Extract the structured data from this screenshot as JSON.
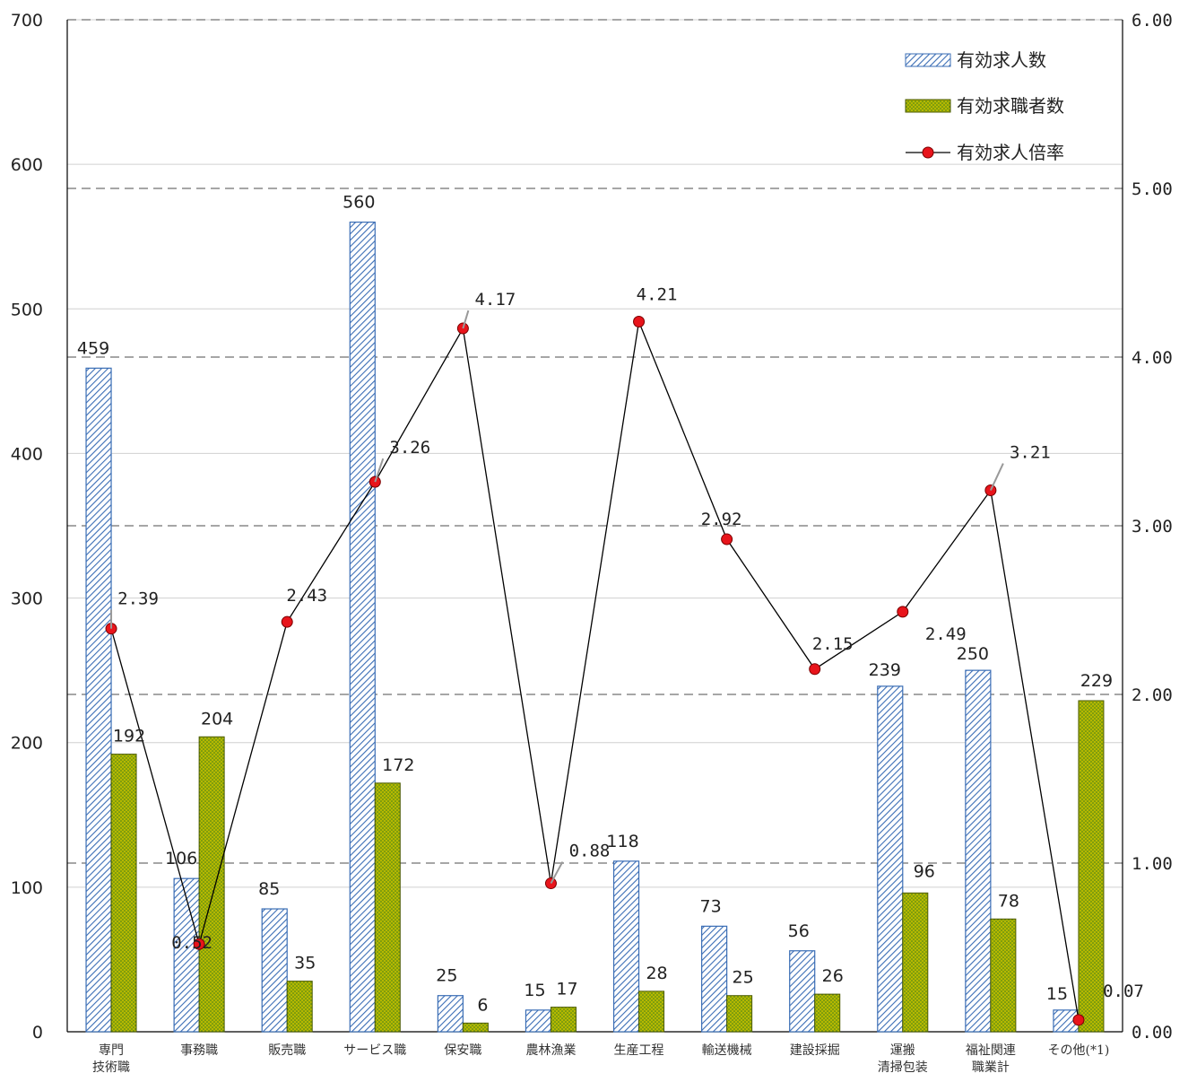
{
  "chart_data": {
    "type": "bar",
    "categories": [
      [
        "専門",
        "技術職"
      ],
      [
        "事務職"
      ],
      [
        "販売職"
      ],
      [
        "サービス職"
      ],
      [
        "保安職"
      ],
      [
        "農林漁業"
      ],
      [
        "生産工程"
      ],
      [
        "輸送機械"
      ],
      [
        "建設採掘"
      ],
      [
        "運搬",
        "清掃包装"
      ],
      [
        "福祉関連",
        "職業計"
      ],
      [
        "その他(*1)"
      ]
    ],
    "series": [
      {
        "name": "有効求人数",
        "axis": "left",
        "style": "hatched-blue",
        "values": [
          459,
          106,
          85,
          560,
          25,
          15,
          118,
          73,
          56,
          239,
          250,
          15
        ]
      },
      {
        "name": "有効求職者数",
        "axis": "left",
        "style": "dotted-olive",
        "values": [
          192,
          204,
          35,
          172,
          6,
          17,
          28,
          25,
          26,
          96,
          78,
          229
        ]
      },
      {
        "name": "有効求人倍率",
        "axis": "right",
        "type": "line",
        "values": [
          2.39,
          0.52,
          2.43,
          3.26,
          4.17,
          0.88,
          4.21,
          2.92,
          2.15,
          2.49,
          3.21,
          0.07
        ],
        "labels": [
          "2.39",
          "0.52",
          "2.43",
          "3.26",
          "4.17",
          "0.88",
          "4.21",
          "2.92",
          "2.15",
          "2.49",
          "3.21",
          "0.07"
        ]
      }
    ],
    "y_left": {
      "range": [
        0,
        700
      ],
      "ticks": [
        "0",
        "100",
        "200",
        "300",
        "400",
        "500",
        "600",
        "700"
      ]
    },
    "y_right": {
      "range": [
        0,
        6
      ],
      "ticks": [
        "0.00",
        "1.00",
        "2.00",
        "3.00",
        "4.00",
        "5.00",
        "6.00"
      ]
    },
    "grid": true,
    "legend": {
      "placement": "top-right",
      "items": [
        "有効求人数",
        "有効求職者数",
        "有効求人倍率"
      ]
    },
    "colors": {
      "bar1_stroke": "#3a6db5",
      "bar1_hatch": "#3a6db5",
      "bar2_fill": "#b5b800",
      "bar2_dot": "#3f7d1c",
      "line": "#000000",
      "marker_fill": "#e8141b",
      "marker_stroke": "#7a0000",
      "grid_dashed": "#a6a6a6",
      "grid_solid": "#d0d0d0"
    }
  }
}
